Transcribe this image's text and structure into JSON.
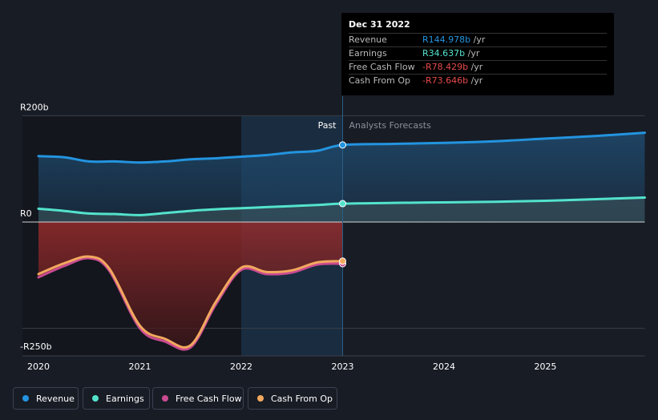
{
  "chart_data": {
    "type": "line",
    "title": "",
    "xlabel": "",
    "ylabel": "",
    "x_range": [
      2019.84,
      2025.98
    ],
    "ylim": [
      -250,
      200
    ],
    "y_ticks": [
      {
        "value": 200,
        "label": "R200b"
      },
      {
        "value": 0,
        "label": "R0"
      },
      {
        "value": -250,
        "label": "-R250b"
      }
    ],
    "x_ticks": [
      {
        "value": 2020,
        "label": "2020"
      },
      {
        "value": 2021,
        "label": "2021"
      },
      {
        "value": 2022,
        "label": "2022"
      },
      {
        "value": 2023,
        "label": "2023"
      },
      {
        "value": 2024,
        "label": "2024"
      },
      {
        "value": 2025,
        "label": "2025"
      }
    ],
    "past_label": "Past",
    "forecast_label": "Analysts Forecasts",
    "split_x": 2023.0,
    "grid": false,
    "legend_position": "bottom-left",
    "series": [
      {
        "name": "Revenue",
        "color": "#2394df",
        "fill": true,
        "x": [
          2020.0,
          2020.25,
          2020.5,
          2020.75,
          2021.0,
          2021.25,
          2021.5,
          2021.75,
          2022.0,
          2022.25,
          2022.5,
          2022.75,
          2023.0,
          2023.5,
          2024.0,
          2024.5,
          2025.0,
          2025.5,
          2025.98
        ],
        "y": [
          124,
          122,
          114,
          114,
          112,
          114,
          118,
          120,
          123,
          126,
          131,
          134,
          145,
          147,
          149,
          152,
          157,
          162,
          168
        ]
      },
      {
        "name": "Earnings",
        "color": "#53e3cc",
        "fill": true,
        "x": [
          2020.0,
          2020.25,
          2020.5,
          2020.75,
          2021.0,
          2021.25,
          2021.5,
          2021.75,
          2022.0,
          2022.25,
          2022.5,
          2022.75,
          2023.0,
          2023.5,
          2024.0,
          2024.5,
          2025.0,
          2025.5,
          2025.98
        ],
        "y": [
          25,
          21,
          16,
          15,
          13,
          17,
          21,
          24,
          26,
          28,
          30,
          32,
          34.6,
          36,
          37,
          38,
          40,
          43,
          46
        ]
      },
      {
        "name": "Free Cash Flow",
        "color": "#c94b91",
        "fill": false,
        "x": [
          2020.0,
          2020.25,
          2020.5,
          2020.7,
          2021.0,
          2021.25,
          2021.5,
          2021.75,
          2022.0,
          2022.25,
          2022.5,
          2022.75,
          2023.0
        ],
        "y": [
          -104,
          -83,
          -68,
          -92,
          -200,
          -225,
          -236,
          -155,
          -90,
          -98,
          -95,
          -80,
          -78.4
        ]
      },
      {
        "name": "Cash From Op",
        "color": "#f2a95e",
        "fill": false,
        "x": [
          2020.0,
          2020.25,
          2020.5,
          2020.7,
          2021.0,
          2021.25,
          2021.5,
          2021.75,
          2022.0,
          2022.25,
          2022.5,
          2022.75,
          2023.0
        ],
        "y": [
          -98,
          -78,
          -65,
          -88,
          -195,
          -220,
          -232,
          -150,
          -86,
          -94,
          -91,
          -76,
          -73.6
        ]
      }
    ]
  },
  "tooltip": {
    "date": "Dec 31 2022",
    "unit": " /yr",
    "rows": [
      {
        "label": "Revenue",
        "value": "R144.978b",
        "color": "#2394df"
      },
      {
        "label": "Earnings",
        "value": "R34.637b",
        "color": "#53e3cc"
      },
      {
        "label": "Free Cash Flow",
        "value": "-R78.429b",
        "color": "#e64a4a"
      },
      {
        "label": "Cash From Op",
        "value": "-R73.646b",
        "color": "#e64a4a"
      }
    ]
  },
  "legend": [
    {
      "label": "Revenue",
      "color": "#2394df"
    },
    {
      "label": "Earnings",
      "color": "#53e3cc"
    },
    {
      "label": "Free Cash Flow",
      "color": "#c94b91"
    },
    {
      "label": "Cash From Op",
      "color": "#f2a95e"
    }
  ]
}
